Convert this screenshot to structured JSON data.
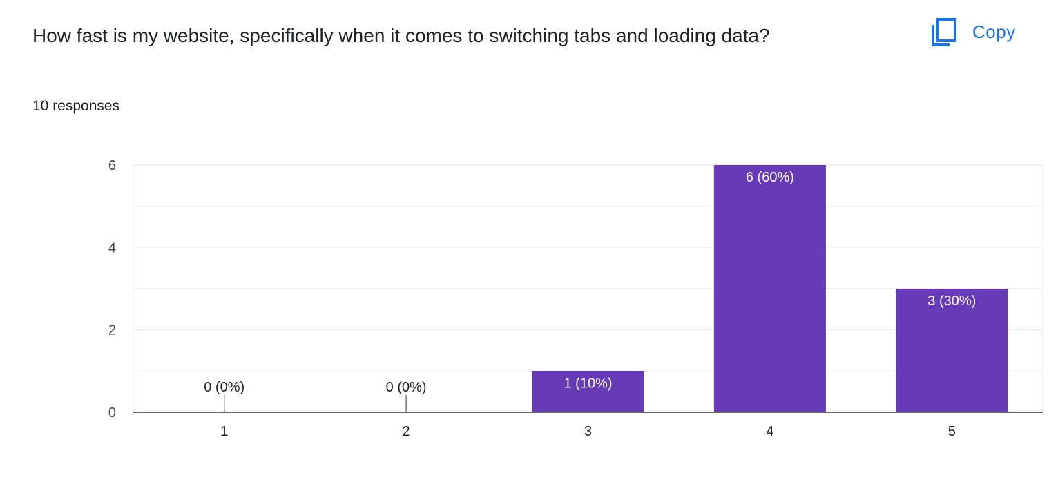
{
  "question": {
    "title": "How fast is my website, specifically when it comes to switching tabs and loading data?",
    "responses_count": "10 responses"
  },
  "copy_button": {
    "label": "Copy",
    "icon": "copy-icon",
    "color": "#1a73e8"
  },
  "chart_data": {
    "type": "bar",
    "categories": [
      "1",
      "2",
      "3",
      "4",
      "5"
    ],
    "values": [
      0,
      0,
      1,
      6,
      3
    ],
    "data_labels": [
      "0 (0%)",
      "0 (0%)",
      "1 (10%)",
      "6 (60%)",
      "3 (30%)"
    ],
    "ylim": [
      0,
      6
    ],
    "y_ticks": [
      "0",
      "2",
      "4",
      "6"
    ],
    "y_tick_values": [
      0,
      2,
      4,
      6
    ],
    "grid": true,
    "bar_color": "#673ab7",
    "title": "",
    "xlabel": "",
    "ylabel": ""
  }
}
